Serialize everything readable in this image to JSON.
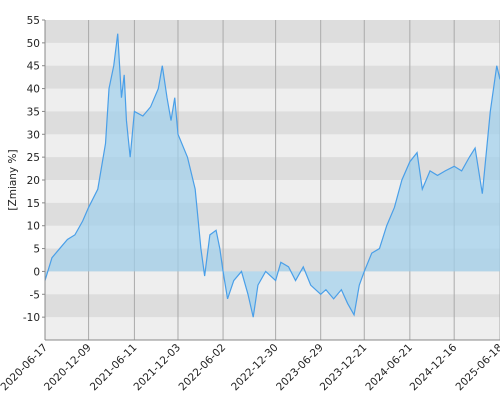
{
  "chart_data": {
    "type": "area",
    "y_label": "[Zmiany %]",
    "color": "#4a9fe8",
    "fill_color": "#9fd0ec",
    "grid": true,
    "bands": true,
    "ylim": [
      -15,
      55
    ],
    "yticks": [
      -10,
      -5,
      0,
      5,
      10,
      15,
      20,
      25,
      30,
      35,
      40,
      45,
      50,
      55
    ],
    "xlim": [
      "2020-06-17",
      "2025-06-18"
    ],
    "xticks": [
      "2020-06-17",
      "2020-12-09",
      "2021-06-11",
      "2021-12-03",
      "2022-06-02",
      "2022-12-30",
      "2023-06-29",
      "2023-12-21",
      "2024-06-21",
      "2024-12-16",
      "2025-06-18"
    ],
    "x": [
      "2020-06-17",
      "2020-07-15",
      "2020-08-15",
      "2020-09-15",
      "2020-10-15",
      "2020-11-15",
      "2020-12-09",
      "2021-01-15",
      "2021-02-15",
      "2021-03-01",
      "2021-03-20",
      "2021-04-05",
      "2021-04-20",
      "2021-05-01",
      "2021-05-10",
      "2021-05-25",
      "2021-06-11",
      "2021-07-15",
      "2021-08-15",
      "2021-09-15",
      "2021-10-01",
      "2021-10-20",
      "2021-11-05",
      "2021-11-20",
      "2021-12-03",
      "2022-01-10",
      "2022-02-10",
      "2022-03-05",
      "2022-03-20",
      "2022-04-10",
      "2022-05-05",
      "2022-05-20",
      "2022-06-02",
      "2022-06-20",
      "2022-07-15",
      "2022-08-15",
      "2022-09-10",
      "2022-10-01",
      "2022-10-20",
      "2022-11-20",
      "2022-12-30",
      "2023-01-20",
      "2023-02-20",
      "2023-03-20",
      "2023-04-20",
      "2023-05-20",
      "2023-06-29",
      "2023-07-20",
      "2023-08-20",
      "2023-09-20",
      "2023-10-15",
      "2023-11-10",
      "2023-12-01",
      "2023-12-21",
      "2024-01-20",
      "2024-02-20",
      "2024-03-20",
      "2024-04-20",
      "2024-05-20",
      "2024-06-21",
      "2024-07-20",
      "2024-08-10",
      "2024-09-10",
      "2024-10-10",
      "2024-11-10",
      "2024-12-16",
      "2025-01-15",
      "2025-02-15",
      "2025-03-10",
      "2025-04-08",
      "2025-05-10",
      "2025-06-05",
      "2025-06-18"
    ],
    "values": [
      -2,
      3,
      5,
      7,
      8,
      11,
      14,
      18,
      28,
      40,
      45,
      52,
      38,
      43,
      33,
      25,
      35,
      34,
      36,
      40,
      45,
      38,
      33,
      38,
      30,
      25,
      18,
      5,
      -1,
      8,
      9,
      5,
      0,
      -6,
      -2,
      0,
      -5,
      -10,
      -3,
      0,
      -2,
      2,
      1,
      -2,
      1,
      -3,
      -5,
      -4,
      -6,
      -4,
      -7,
      -9.5,
      -3,
      0,
      4,
      5,
      10,
      14,
      20,
      24,
      26,
      18,
      22,
      21,
      22,
      23,
      22,
      25,
      27,
      17,
      35,
      45,
      42
    ]
  }
}
